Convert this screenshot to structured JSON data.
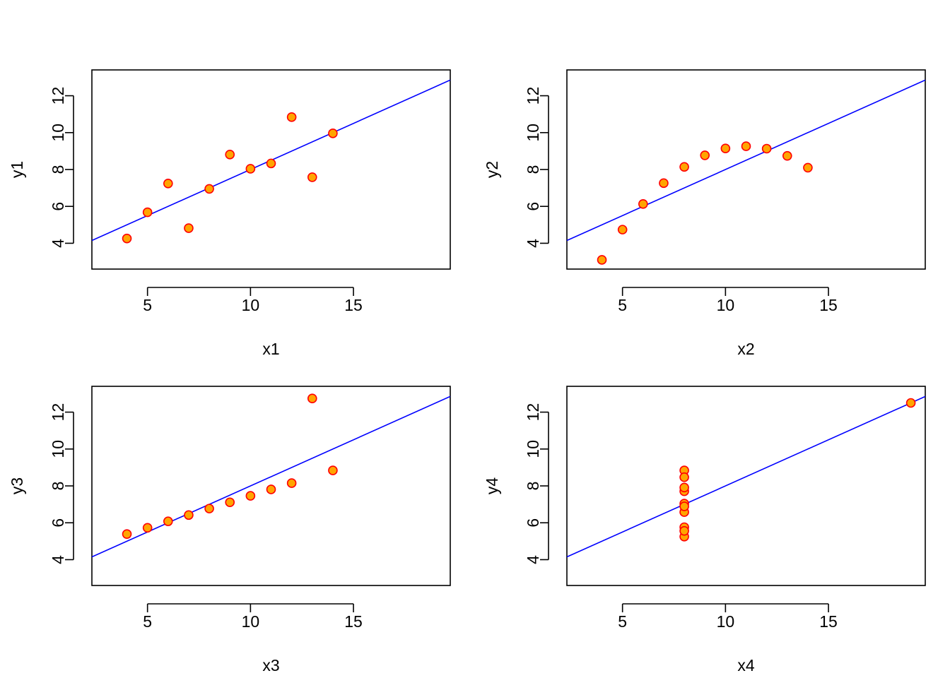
{
  "figure": {
    "layout": "2x2",
    "background": "#ffffff"
  },
  "style": {
    "point_fill": "#ffa500",
    "point_stroke": "#ff0000",
    "line_color": "#0000ff",
    "axis_color": "#000000"
  },
  "chart_data": [
    {
      "type": "scatter",
      "title": "",
      "xlabel": "x1",
      "ylabel": "y1",
      "xlim": [
        2.3,
        19.7
      ],
      "ylim": [
        2.6,
        13.4
      ],
      "xticks": [
        5,
        10,
        15
      ],
      "yticks": [
        4,
        6,
        8,
        10,
        12
      ],
      "grid": false,
      "x": [
        10,
        8,
        13,
        9,
        11,
        14,
        6,
        4,
        12,
        7,
        5
      ],
      "y": [
        8.04,
        6.95,
        7.58,
        8.81,
        8.33,
        9.96,
        7.24,
        4.26,
        10.84,
        4.82,
        5.68
      ],
      "fit_line": {
        "intercept": 3.0,
        "slope": 0.5
      }
    },
    {
      "type": "scatter",
      "title": "",
      "xlabel": "x2",
      "ylabel": "y2",
      "xlim": [
        2.3,
        19.7
      ],
      "ylim": [
        2.6,
        13.4
      ],
      "xticks": [
        5,
        10,
        15
      ],
      "yticks": [
        4,
        6,
        8,
        10,
        12
      ],
      "grid": false,
      "x": [
        10,
        8,
        13,
        9,
        11,
        14,
        6,
        4,
        12,
        7,
        5
      ],
      "y": [
        9.14,
        8.14,
        8.74,
        8.77,
        9.26,
        8.1,
        6.13,
        3.1,
        9.13,
        7.26,
        4.74
      ],
      "fit_line": {
        "intercept": 3.0,
        "slope": 0.5
      }
    },
    {
      "type": "scatter",
      "title": "",
      "xlabel": "x3",
      "ylabel": "y3",
      "xlim": [
        2.3,
        19.7
      ],
      "ylim": [
        2.6,
        13.4
      ],
      "xticks": [
        5,
        10,
        15
      ],
      "yticks": [
        4,
        6,
        8,
        10,
        12
      ],
      "grid": false,
      "x": [
        10,
        8,
        13,
        9,
        11,
        14,
        6,
        4,
        12,
        7,
        5
      ],
      "y": [
        7.46,
        6.77,
        12.74,
        7.11,
        7.81,
        8.84,
        6.08,
        5.39,
        8.15,
        6.42,
        5.73
      ],
      "fit_line": {
        "intercept": 3.0,
        "slope": 0.5
      }
    },
    {
      "type": "scatter",
      "title": "",
      "xlabel": "x4",
      "ylabel": "y4",
      "xlim": [
        2.3,
        19.7
      ],
      "ylim": [
        2.6,
        13.4
      ],
      "xticks": [
        5,
        10,
        15
      ],
      "yticks": [
        4,
        6,
        8,
        10,
        12
      ],
      "grid": false,
      "x": [
        8,
        8,
        8,
        8,
        8,
        8,
        8,
        19,
        8,
        8,
        8
      ],
      "y": [
        6.58,
        5.76,
        7.71,
        8.84,
        8.47,
        7.04,
        5.25,
        12.5,
        5.56,
        7.91,
        6.89
      ],
      "fit_line": {
        "intercept": 3.0,
        "slope": 0.5
      }
    }
  ]
}
